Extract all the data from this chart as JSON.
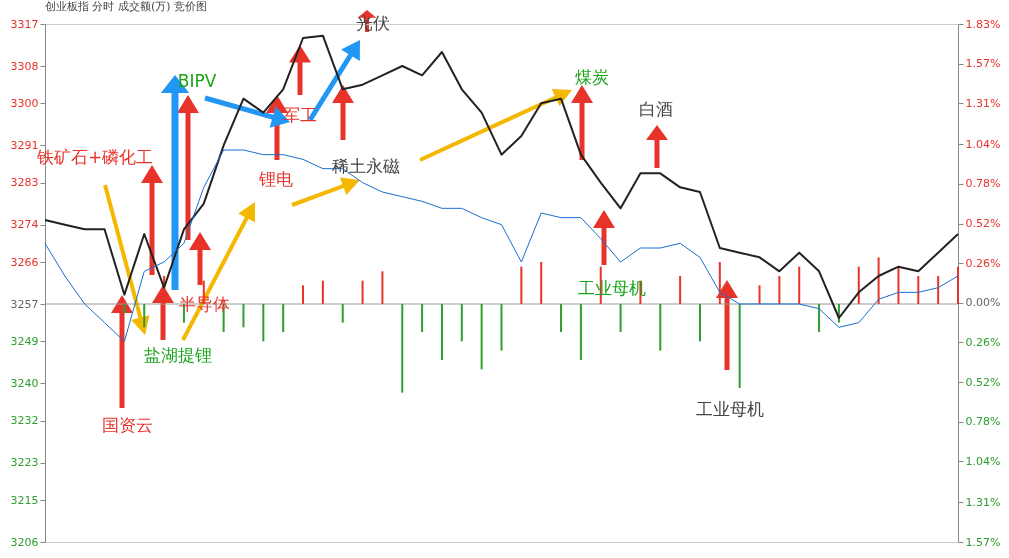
{
  "chart_data": {
    "type": "line",
    "title": "创业板指  分时 成交额(万) 竞价图",
    "categories": [
      null,
      null,
      null,
      null,
      null,
      null,
      null,
      null,
      null,
      null,
      null,
      null,
      null,
      null,
      null,
      null,
      null,
      null,
      null,
      null,
      null,
      null,
      null,
      null,
      null,
      null,
      null,
      null,
      null,
      null,
      null,
      null,
      null,
      null,
      null,
      null,
      null,
      null,
      null,
      null,
      null,
      null,
      null,
      null,
      null,
      null,
      null
    ],
    "series": [
      {
        "type": "bar",
        "colors": [
          null,
          null,
          null,
          null,
          "#2e9e2e",
          "#2e9e2e",
          "#e8332a",
          "#2e9e2e",
          "#e8332a",
          "#2e9e2e",
          "#2e9e2e",
          "#2e9e2e",
          "#2e9e2e",
          "#e8332a",
          "#e8332a",
          "#2e9e2e",
          "#e8332a",
          "#e8332a",
          "#2e9e2e",
          "#2e9e2e",
          "#2e9e2e",
          "#2e9e2e",
          "#2e9e2e",
          "#2e9e2e",
          "#e8332a",
          "#e8332a",
          "#2e9e2e",
          "#2e9e2e",
          "#e8332a",
          "#2e9e2e",
          "#e8332a",
          "#2e9e2e",
          "#e8332a",
          "#2e9e2e",
          "#e8332a",
          "#2e9e2e",
          "#e8332a",
          "#e8332a",
          "#e8332a",
          "#2e9e2e",
          "#2e9e2e",
          "#e8332a",
          "#e8332a",
          "#e8332a",
          "#e8332a",
          "#e8332a",
          "#e8332a"
        ],
        "base": [
          null,
          null,
          null,
          null,
          3257,
          3257,
          3257,
          3257,
          3257,
          3257,
          3257,
          3257,
          3257,
          3257,
          3257,
          3257,
          3257,
          3257,
          3257,
          3257,
          3257,
          3257,
          3257,
          3257,
          3257,
          3257,
          3257,
          3257,
          3257,
          3257,
          3257,
          3257,
          3257,
          3257,
          3257,
          3257,
          3257,
          3257,
          3257,
          3257,
          3257,
          3257,
          3257,
          3257,
          3257,
          3257,
          3257
        ],
        "values": [
          null,
          null,
          null,
          null,
          -2,
          -5,
          6,
          -4,
          5,
          -6,
          -5,
          -8,
          -6,
          4,
          5,
          -4,
          5,
          7,
          -19,
          -6,
          -12,
          -8,
          -14,
          -10,
          8,
          9,
          -6,
          -12,
          8,
          -6,
          5,
          -10,
          6,
          -8,
          9,
          -18,
          4,
          6,
          8,
          -6,
          -4,
          8,
          10,
          8,
          6,
          6,
          8
        ]
      },
      {
        "color": "#222222",
        "values": [
          3275,
          3274,
          3273,
          3273,
          3259,
          3272,
          3260.5,
          3273,
          3278.5,
          3291,
          3301,
          3298,
          3303,
          3314,
          3314.5,
          3303,
          3304,
          3306,
          3308,
          3306,
          3311,
          3303,
          3298,
          3289,
          3293,
          3300,
          3301,
          3289,
          3283,
          3277.5,
          3285,
          3285,
          3282,
          3281,
          3269,
          3268,
          3267,
          3264,
          3268,
          3264,
          3254,
          3259.5,
          3263,
          3265,
          3264,
          3268,
          3272
        ]
      },
      {
        "color": "#1a6fd0",
        "values": [
          3270,
          3263,
          3257,
          3253,
          3249,
          3264,
          3266,
          3270,
          3282,
          3290,
          3290,
          3289,
          3289,
          3288,
          3286,
          3286,
          3283,
          3281,
          3280,
          3279,
          3277.5,
          3277.5,
          3275.5,
          3274,
          3266,
          3276.5,
          3275.5,
          3275.5,
          3271,
          3266,
          3269,
          3269,
          3270,
          3267,
          3259.5,
          3257,
          3257,
          3257,
          3257,
          3256,
          3252,
          3253,
          3258,
          3259.5,
          3259.5,
          3260.5,
          3263
        ]
      }
    ],
    "ylim": [
      3206,
      3317
    ],
    "yticks": [
      3206,
      3215,
      3223,
      3232,
      3240,
      3249,
      3257,
      3266,
      3274,
      3283,
      3291,
      3300,
      3308,
      3317
    ],
    "y2lim": [
      -1.57,
      1.83
    ],
    "y2ticks": [
      {
        "value": -1.57,
        "label": "1.57%"
      },
      {
        "value": -1.31,
        "label": "1.31%"
      },
      {
        "value": -1.04,
        "label": "1.04%"
      },
      {
        "value": -0.78,
        "label": "0.78%"
      },
      {
        "value": -0.52,
        "label": "0.52%"
      },
      {
        "value": -0.26,
        "label": "0.26%"
      },
      {
        "value": 0,
        "label": "0.00%"
      },
      {
        "value": 0.26,
        "label": "0.26%"
      },
      {
        "value": 0.52,
        "label": "0.52%"
      },
      {
        "value": 0.78,
        "label": "0.78%"
      },
      {
        "value": 1.04,
        "label": "1.04%"
      },
      {
        "value": 1.31,
        "label": "1.31%"
      },
      {
        "value": 1.57,
        "label": "1.57%"
      },
      {
        "value": 1.83,
        "label": "1.83%"
      }
    ],
    "ref_lines": [
      {
        "axis": "y",
        "value": 3257,
        "color": "#999999"
      }
    ],
    "annotations": [
      "铁矿石+磷化工",
      "BIPV",
      "军工",
      "光伏",
      "锂电",
      "稀土永磁",
      "煤炭",
      "白酒",
      "半导体",
      "盐湖提锂",
      "国资云",
      "工业母机",
      "工业母机"
    ]
  }
}
